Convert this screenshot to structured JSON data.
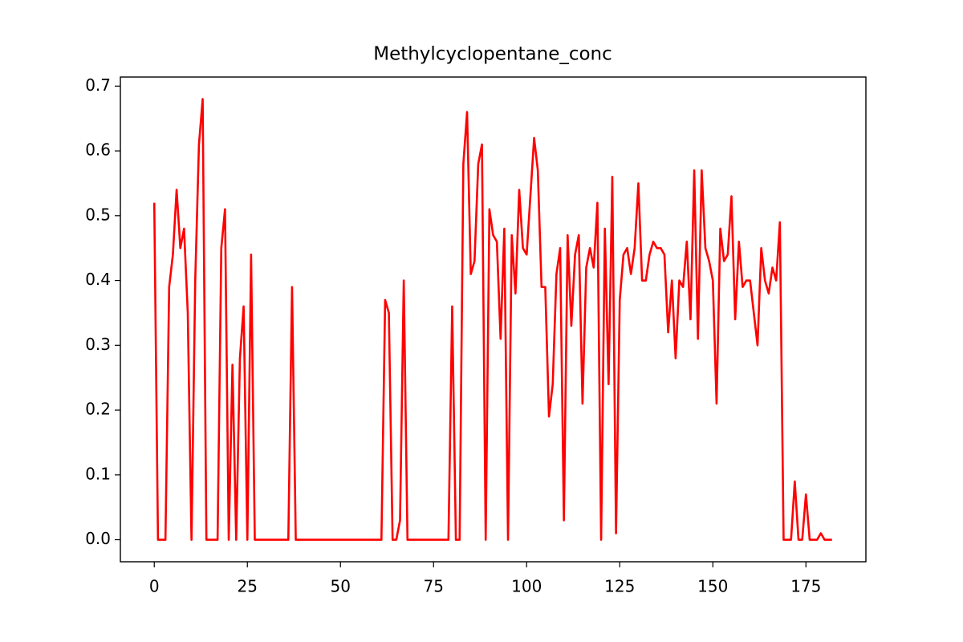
{
  "chart_data": {
    "type": "line",
    "title": "Methylcyclopentane_conc",
    "x": [
      0,
      1,
      2,
      3,
      4,
      5,
      6,
      7,
      8,
      9,
      10,
      11,
      12,
      13,
      14,
      15,
      16,
      17,
      18,
      19,
      20,
      21,
      22,
      23,
      24,
      25,
      26,
      27,
      28,
      29,
      30,
      31,
      32,
      33,
      34,
      35,
      36,
      37,
      38,
      39,
      40,
      41,
      42,
      43,
      44,
      45,
      46,
      47,
      48,
      49,
      50,
      51,
      52,
      53,
      54,
      55,
      56,
      57,
      58,
      59,
      60,
      61,
      62,
      63,
      64,
      65,
      66,
      67,
      68,
      69,
      70,
      71,
      72,
      73,
      74,
      75,
      76,
      77,
      78,
      79,
      80,
      81,
      82,
      83,
      84,
      85,
      86,
      87,
      88,
      89,
      90,
      91,
      92,
      93,
      94,
      95,
      96,
      97,
      98,
      99,
      100,
      101,
      102,
      103,
      104,
      105,
      106,
      107,
      108,
      109,
      110,
      111,
      112,
      113,
      114,
      115,
      116,
      117,
      118,
      119,
      120,
      121,
      122,
      123,
      124,
      125,
      126,
      127,
      128,
      129,
      130,
      131,
      132,
      133,
      134,
      135,
      136,
      137,
      138,
      139,
      140,
      141,
      142,
      143,
      144,
      145,
      146,
      147,
      148,
      149,
      150,
      151,
      152,
      153,
      154,
      155,
      156,
      157,
      158,
      159,
      160,
      161,
      162,
      163,
      164,
      165,
      166,
      167,
      168,
      169,
      170,
      171,
      172,
      173,
      174,
      175,
      176,
      177,
      178,
      179,
      180,
      181,
      182
    ],
    "series": [
      {
        "name": "Methylcyclopentane_conc",
        "color": "#ff0000",
        "values": [
          0.52,
          0,
          0,
          0,
          0.39,
          0.44,
          0.54,
          0.45,
          0.48,
          0.35,
          0,
          0.4,
          0.61,
          0.68,
          0,
          0,
          0,
          0,
          0.45,
          0.51,
          0,
          0.27,
          0,
          0.28,
          0.36,
          0,
          0.44,
          0,
          0,
          0,
          0,
          0,
          0,
          0,
          0,
          0,
          0,
          0.39,
          0,
          0,
          0,
          0,
          0,
          0,
          0,
          0,
          0,
          0,
          0,
          0,
          0,
          0,
          0,
          0,
          0,
          0,
          0,
          0,
          0,
          0,
          0,
          0,
          0.37,
          0.35,
          0,
          0,
          0.03,
          0.4,
          0,
          0,
          0,
          0,
          0,
          0,
          0,
          0,
          0,
          0,
          0,
          0,
          0.36,
          0,
          0,
          0.58,
          0.66,
          0.41,
          0.43,
          0.58,
          0.61,
          0,
          0.51,
          0.47,
          0.46,
          0.31,
          0.48,
          0,
          0.47,
          0.38,
          0.54,
          0.45,
          0.44,
          0.53,
          0.62,
          0.57,
          0.39,
          0.39,
          0.19,
          0.24,
          0.41,
          0.45,
          0.03,
          0.47,
          0.33,
          0.44,
          0.47,
          0.21,
          0.42,
          0.45,
          0.42,
          0.52,
          0,
          0.48,
          0.24,
          0.56,
          0.01,
          0.37,
          0.44,
          0.45,
          0.41,
          0.45,
          0.55,
          0.4,
          0.4,
          0.44,
          0.46,
          0.45,
          0.45,
          0.44,
          0.32,
          0.4,
          0.28,
          0.4,
          0.39,
          0.46,
          0.34,
          0.57,
          0.31,
          0.57,
          0.45,
          0.43,
          0.4,
          0.21,
          0.48,
          0.43,
          0.44,
          0.53,
          0.34,
          0.46,
          0.39,
          0.4,
          0.4,
          0.35,
          0.3,
          0.45,
          0.4,
          0.38,
          0.42,
          0.4,
          0.49,
          0,
          0,
          0,
          0.09,
          0,
          0,
          0.07,
          0,
          0,
          0,
          0.01,
          0,
          0,
          0
        ]
      }
    ],
    "xlim": [
      -9.1,
      191.1
    ],
    "xticks": [
      0,
      25,
      50,
      75,
      100,
      125,
      150,
      175
    ],
    "ylim": [
      -0.034,
      0.714
    ],
    "yticks": [
      {
        "value": 0,
        "label": "0.0"
      },
      0.1,
      0.2,
      0.3,
      0.4,
      0.5,
      0.6,
      0.7
    ],
    "grid": false
  }
}
